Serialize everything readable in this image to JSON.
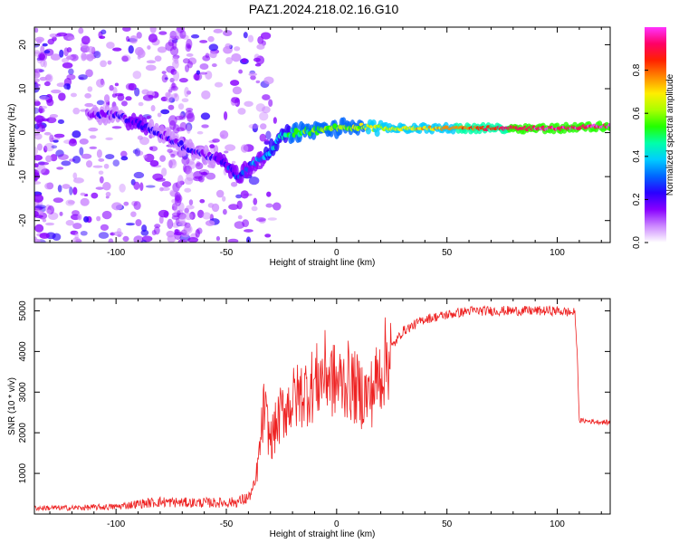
{
  "title": "PAZ1.2024.218.02.16.G10",
  "colors": {
    "snr_line": "#ee2222",
    "frame": "#000000",
    "colormap": [
      "#ffffff",
      "#cc88ff",
      "#8800ff",
      "#2a00ff",
      "#0066ff",
      "#00ccff",
      "#00ffaa",
      "#22ff00",
      "#aaff00",
      "#ffee00",
      "#ff8800",
      "#ff2200",
      "#ff0066",
      "#ff33ff"
    ]
  },
  "chart_data": [
    {
      "type": "heatmap",
      "xlabel": "Height of straight line (km)",
      "ylabel": "Frequency (Hz)",
      "xlim": [
        -137,
        124
      ],
      "ylim": [
        -25,
        24
      ],
      "xticks": [
        -100,
        -50,
        0,
        50,
        100
      ],
      "xtick_labels": [
        "-100",
        "-50",
        "0",
        "50",
        "100"
      ],
      "yticks": [
        -20,
        -10,
        0,
        10,
        20
      ],
      "ytick_labels": [
        "-20",
        "-10",
        "0",
        "10",
        "20"
      ],
      "colorbar": {
        "label": "Normalized spectral amplitude",
        "range": [
          0,
          1
        ],
        "ticks": [
          0.0,
          0.2,
          0.4,
          0.6,
          0.8
        ],
        "tick_labels": [
          "0.0",
          "0.2",
          "0.4",
          "0.6",
          "0.8"
        ]
      },
      "ridge": {
        "x": [
          -110,
          -100,
          -90,
          -80,
          -70,
          -60,
          -50,
          -45,
          -40,
          -35,
          -30,
          -25,
          -20,
          -10,
          0,
          10,
          20,
          40,
          60,
          80,
          100,
          124
        ],
        "frequency": [
          4,
          4,
          2,
          0,
          -3,
          -5,
          -7,
          -10,
          -8,
          -6,
          -4,
          -1,
          0,
          0.5,
          1,
          1.5,
          1,
          1,
          1,
          1,
          1,
          1.5
        ],
        "amplitude": [
          0.18,
          0.2,
          0.22,
          0.2,
          0.2,
          0.2,
          0.22,
          0.28,
          0.3,
          0.32,
          0.38,
          0.45,
          0.5,
          0.55,
          0.6,
          0.62,
          0.65,
          0.7,
          0.8,
          0.92,
          0.95,
          0.96
        ]
      }
    },
    {
      "type": "line",
      "xlabel": "Height of straight line (km)",
      "ylabel": "SNR (10 * v/v)",
      "xlim": [
        -137,
        124
      ],
      "ylim": [
        0,
        5300
      ],
      "xticks": [
        -100,
        -50,
        0,
        50,
        100
      ],
      "xtick_labels": [
        "-100",
        "-50",
        "0",
        "50",
        "100"
      ],
      "yticks": [
        1000,
        2000,
        3000,
        4000,
        5000
      ],
      "ytick_labels": [
        "1000",
        "2000",
        "3000",
        "4000",
        "5000"
      ],
      "series": [
        {
          "x": [
            -137,
            -120,
            -100,
            -90,
            -80,
            -70,
            -60,
            -50,
            -45,
            -40,
            -37,
            -35,
            -33,
            -30,
            -25,
            -20,
            -15,
            -10,
            -5,
            0,
            5,
            10,
            15,
            20,
            25,
            30,
            40,
            50,
            60,
            70,
            80,
            90,
            100,
            108,
            109,
            110,
            124
          ],
          "values": [
            150,
            150,
            180,
            250,
            300,
            280,
            280,
            280,
            300,
            400,
            700,
            1500,
            2600,
            1800,
            2500,
            2800,
            3000,
            3200,
            3500,
            3200,
            3300,
            3000,
            2900,
            3500,
            4100,
            4500,
            4800,
            4900,
            5000,
            5000,
            5000,
            5000,
            5000,
            4950,
            4000,
            2300,
            2250
          ]
        }
      ]
    }
  ]
}
